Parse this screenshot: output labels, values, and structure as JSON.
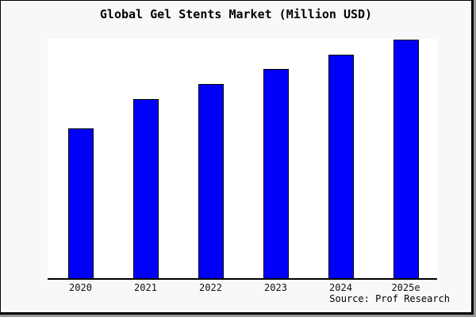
{
  "title": "Global Gel Stents Market (Million USD)",
  "source": "Source: Prof Research",
  "colors": {
    "outer_background": "#f8f8f8",
    "plot_background": "#ffffff",
    "frame_border": "#000000",
    "frame_shadow": "#979797",
    "bar_fill": "#0000fa",
    "bar_border": "#000000",
    "axis_line": "#000000",
    "text": "#000000"
  },
  "chart_data": {
    "type": "bar",
    "title": "Global Gel Stents Market (Million USD)",
    "categories": [
      "2020",
      "2021",
      "2022",
      "2023",
      "2024",
      "2025e"
    ],
    "values": [
      62.8,
      75.1,
      81.4,
      87.7,
      93.7,
      100
    ],
    "values_note": "y-axis has no tick labels in the image; values are relative bar heights indexed to 2025e = 100",
    "xlabel": "",
    "ylabel": "",
    "ylim": [
      0,
      100
    ],
    "grid": false,
    "legend": false,
    "y_axis_visible": false,
    "bar_color": "#0000fa",
    "bar_border_color": "#000000",
    "source_label": "Source: Prof Research"
  }
}
